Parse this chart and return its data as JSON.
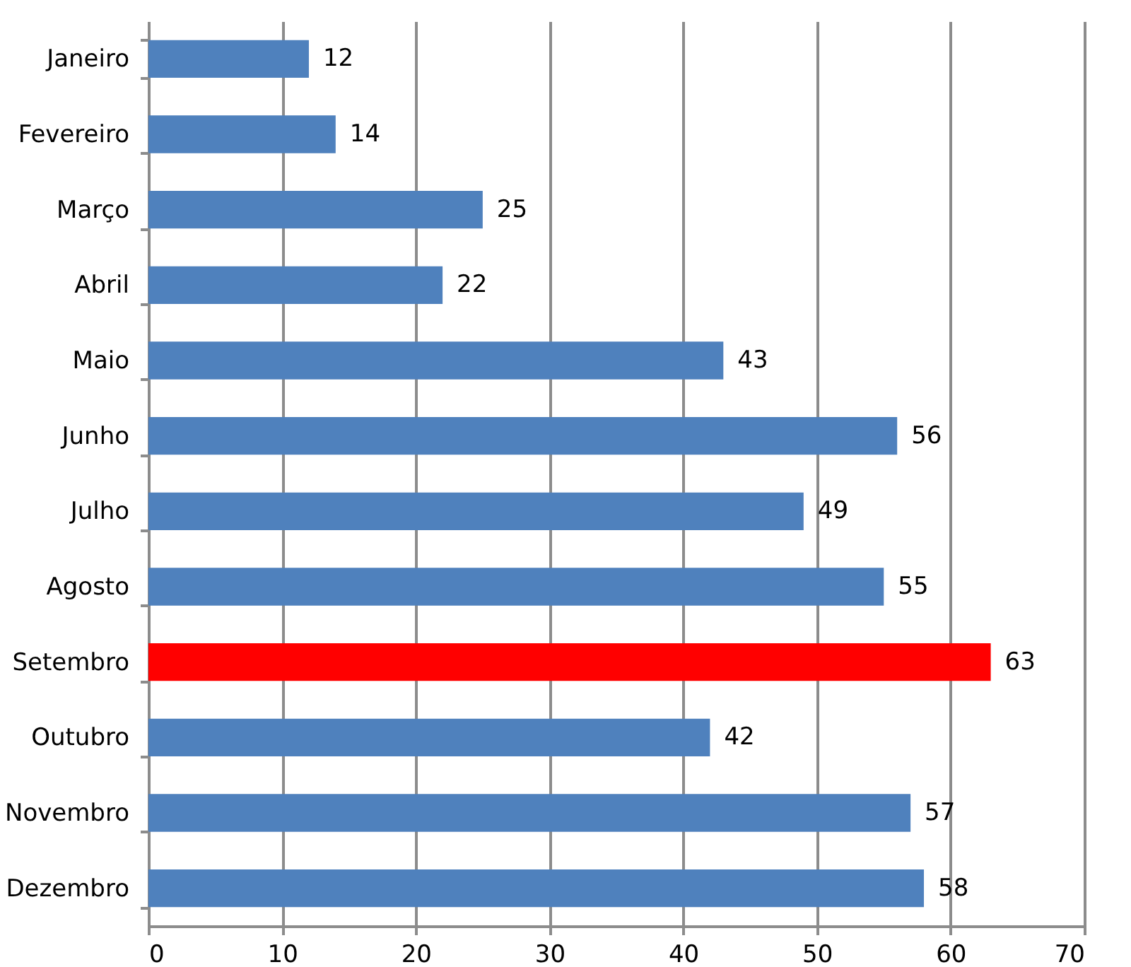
{
  "chart_data": {
    "type": "bar",
    "orientation": "horizontal",
    "categories": [
      "Janeiro",
      "Fevereiro",
      "Março",
      "Abril",
      "Maio",
      "Junho",
      "Julho",
      "Agosto",
      "Setembro",
      "Outubro",
      "Novembro",
      "Dezembro"
    ],
    "values": [
      12,
      14,
      25,
      22,
      43,
      56,
      49,
      55,
      63,
      42,
      57,
      58
    ],
    "colors": [
      "#4f81bd",
      "#4f81bd",
      "#4f81bd",
      "#4f81bd",
      "#4f81bd",
      "#4f81bd",
      "#4f81bd",
      "#4f81bd",
      "#ff0000",
      "#4f81bd",
      "#4f81bd",
      "#4f81bd"
    ],
    "xlim": [
      0,
      70
    ],
    "xticks": [
      0,
      10,
      20,
      30,
      40,
      50,
      60,
      70
    ],
    "grid": "x",
    "data_labels": true
  }
}
